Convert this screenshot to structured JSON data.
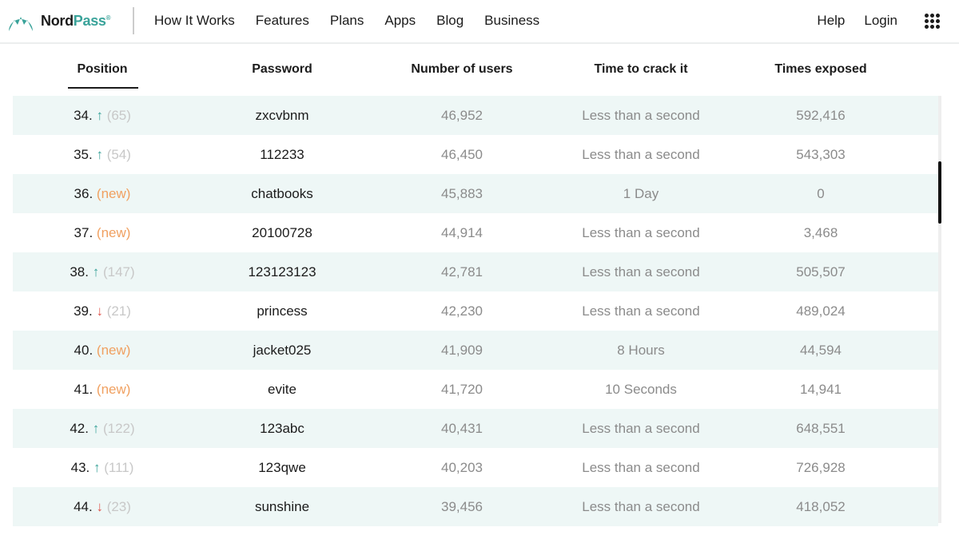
{
  "nav": {
    "brand_a": "Nord",
    "brand_b": "Pass",
    "brand_mark": "®",
    "items": [
      "How It Works",
      "Features",
      "Plans",
      "Apps",
      "Blog",
      "Business"
    ],
    "help": "Help",
    "login": "Login"
  },
  "colors": {
    "accent": "#3aa39a",
    "down": "#e0574f",
    "new": "#f0a060",
    "row_shade": "#eef7f6"
  },
  "table": {
    "headers": [
      "Position",
      "Password",
      "Number of users",
      "Time to crack it",
      "Times exposed"
    ],
    "rows": [
      {
        "pos": "34.",
        "dir": "up",
        "change": "(65)",
        "password": "zxcvbnm",
        "users": "46,952",
        "crack": "Less than a second",
        "exposed": "592,416"
      },
      {
        "pos": "35.",
        "dir": "up",
        "change": "(54)",
        "password": "112233",
        "users": "46,450",
        "crack": "Less than a second",
        "exposed": "543,303"
      },
      {
        "pos": "36.",
        "dir": "new",
        "change": "(new)",
        "password": "chatbooks",
        "users": "45,883",
        "crack": "1 Day",
        "exposed": "0"
      },
      {
        "pos": "37.",
        "dir": "new",
        "change": "(new)",
        "password": "20100728",
        "users": "44,914",
        "crack": "Less than a second",
        "exposed": "3,468"
      },
      {
        "pos": "38.",
        "dir": "up",
        "change": "(147)",
        "password": "123123123",
        "users": "42,781",
        "crack": "Less than a second",
        "exposed": "505,507"
      },
      {
        "pos": "39.",
        "dir": "down",
        "change": "(21)",
        "password": "princess",
        "users": "42,230",
        "crack": "Less than a second",
        "exposed": "489,024"
      },
      {
        "pos": "40.",
        "dir": "new",
        "change": "(new)",
        "password": "jacket025",
        "users": "41,909",
        "crack": "8 Hours",
        "exposed": "44,594"
      },
      {
        "pos": "41.",
        "dir": "new",
        "change": "(new)",
        "password": "evite",
        "users": "41,720",
        "crack": "10 Seconds",
        "exposed": "14,941"
      },
      {
        "pos": "42.",
        "dir": "up",
        "change": "(122)",
        "password": "123abc",
        "users": "40,431",
        "crack": "Less than a second",
        "exposed": "648,551"
      },
      {
        "pos": "43.",
        "dir": "up",
        "change": "(111)",
        "password": "123qwe",
        "users": "40,203",
        "crack": "Less than a second",
        "exposed": "726,928"
      },
      {
        "pos": "44.",
        "dir": "down",
        "change": "(23)",
        "password": "sunshine",
        "users": "39,456",
        "crack": "Less than a second",
        "exposed": "418,052"
      }
    ]
  }
}
